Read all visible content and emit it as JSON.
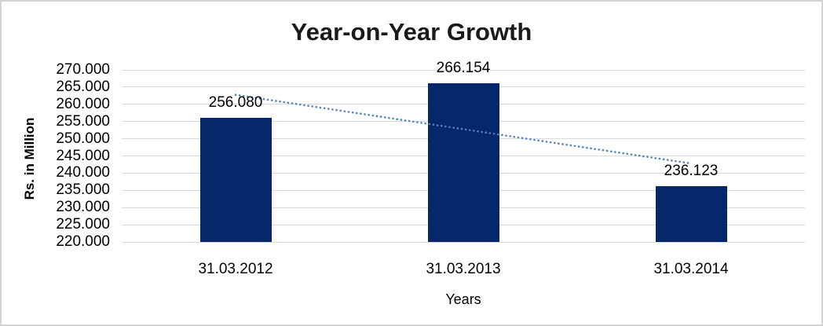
{
  "chart_data": {
    "type": "bar",
    "title": "Year-on-Year Growth",
    "xlabel": "Years",
    "ylabel": "Rs. in Million",
    "categories": [
      "31.03.2012",
      "31.03.2013",
      "31.03.2014"
    ],
    "values": [
      256.08,
      266.154,
      236.123
    ],
    "value_labels": [
      "256.080",
      "266.154",
      "236.123"
    ],
    "ylim": [
      220,
      270
    ],
    "ytick_step": 5,
    "yticks": [
      {
        "value": 270,
        "label": "270.000"
      },
      {
        "value": 265,
        "label": "265.000"
      },
      {
        "value": 260,
        "label": "260.000"
      },
      {
        "value": 255,
        "label": "255.000"
      },
      {
        "value": 250,
        "label": "250.000"
      },
      {
        "value": 245,
        "label": "245.000"
      },
      {
        "value": 240,
        "label": "240.000"
      },
      {
        "value": 235,
        "label": "235.000"
      },
      {
        "value": 230,
        "label": "230.000"
      },
      {
        "value": 225,
        "label": "225.000"
      },
      {
        "value": 220,
        "label": "220.000"
      }
    ],
    "grid": true,
    "legend": "none",
    "trendline": {
      "type": "linear",
      "style": "dotted"
    },
    "colors": {
      "bar": "#06286A",
      "trendline": "#4F81BD",
      "gridline": "#D9D9D9",
      "frame_border": "#D3D3D3",
      "text": "#000000",
      "title_text": "#1A1A1A",
      "background": "#FFFFFF"
    }
  }
}
